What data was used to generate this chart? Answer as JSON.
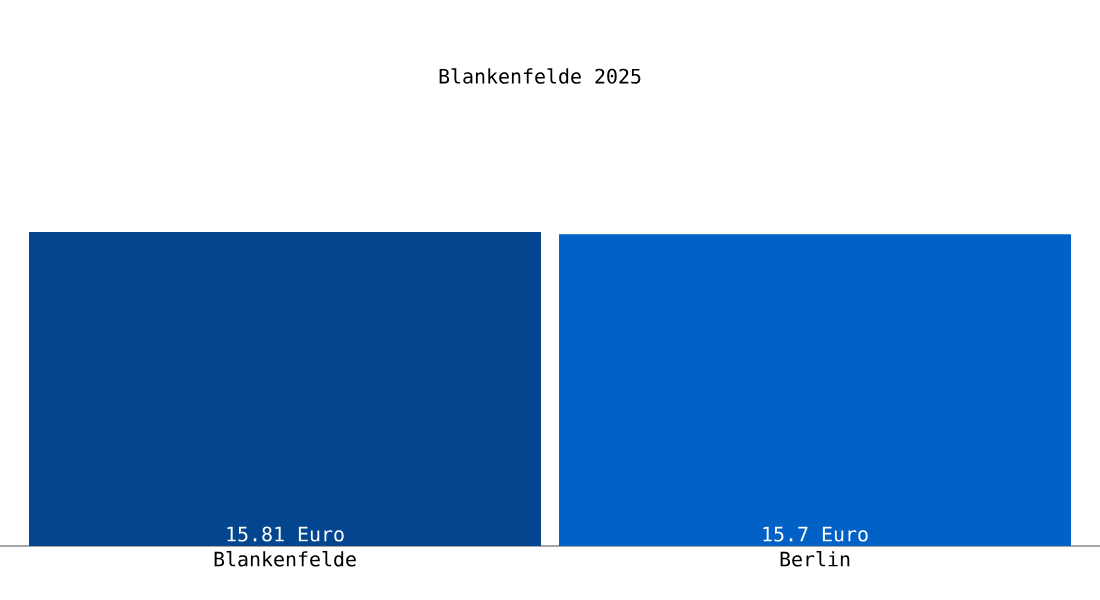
{
  "chart_data": {
    "type": "bar",
    "title": "Blankenfelde 2025",
    "categories": [
      "Blankenfelde",
      "Berlin"
    ],
    "values": [
      15.81,
      15.7
    ],
    "colors": [
      "#03468f",
      "#0261c6"
    ],
    "value_labels": [
      "15.81 Euro",
      "15.7 Euro"
    ]
  }
}
